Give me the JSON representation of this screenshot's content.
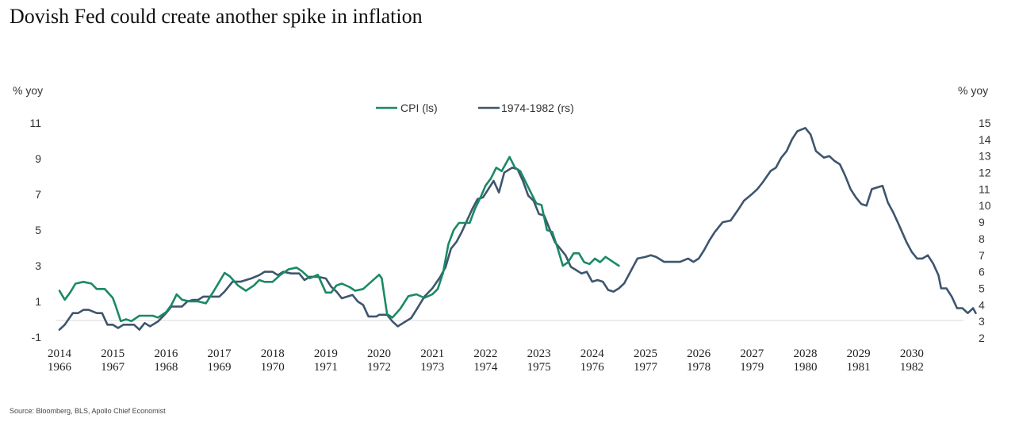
{
  "chart_data": {
    "type": "line",
    "title": "Dovish Fed could create another spike in inflation",
    "source": "Source: Bloomberg, BLS, Apollo Chief Economist",
    "left_axis": {
      "unit": "% yoy",
      "ylim": [
        -1,
        11
      ],
      "ticks": [
        "-1",
        "1",
        "3",
        "5",
        "7",
        "9",
        "11"
      ]
    },
    "right_axis": {
      "unit": "% yoy",
      "ylim": [
        2,
        15
      ],
      "ticks": [
        "2",
        "3",
        "4",
        "5",
        "6",
        "7",
        "8",
        "9",
        "10",
        "11",
        "12",
        "13",
        "14",
        "15"
      ]
    },
    "x_axis_top": {
      "labels": [
        "2014",
        "2015",
        "2016",
        "2017",
        "2018",
        "2019",
        "2020",
        "2021",
        "2022",
        "2023",
        "2024",
        "2025",
        "2026",
        "2027",
        "2028",
        "2029",
        "2030"
      ],
      "xlim": [
        2014,
        2031
      ]
    },
    "x_axis_bottom": {
      "labels": [
        "1966",
        "1967",
        "1968",
        "1969",
        "1970",
        "1971",
        "1972",
        "1973",
        "1974",
        "1975",
        "1976",
        "1977",
        "1978",
        "1979",
        "1980",
        "1981",
        "1982"
      ],
      "xlim": [
        1966,
        1983
      ]
    },
    "legend": {
      "placement": "top-center"
    },
    "grid": false,
    "series": [
      {
        "name": "CPI (ls)",
        "axis": "left",
        "color": "#1a8a64",
        "x_axis": "top",
        "points": [
          [
            2014.0,
            1.6
          ],
          [
            2014.1,
            1.1
          ],
          [
            2014.2,
            1.5
          ],
          [
            2014.3,
            2.0
          ],
          [
            2014.45,
            2.1
          ],
          [
            2014.6,
            2.0
          ],
          [
            2014.7,
            1.7
          ],
          [
            2014.85,
            1.7
          ],
          [
            2015.0,
            1.2
          ],
          [
            2015.05,
            0.8
          ],
          [
            2015.15,
            -0.1
          ],
          [
            2015.25,
            0.0
          ],
          [
            2015.35,
            -0.1
          ],
          [
            2015.5,
            0.2
          ],
          [
            2015.6,
            0.2
          ],
          [
            2015.75,
            0.2
          ],
          [
            2015.85,
            0.1
          ],
          [
            2016.0,
            0.4
          ],
          [
            2016.1,
            0.8
          ],
          [
            2016.2,
            1.4
          ],
          [
            2016.3,
            1.1
          ],
          [
            2016.45,
            1.0
          ],
          [
            2016.6,
            1.0
          ],
          [
            2016.75,
            0.9
          ],
          [
            2016.9,
            1.6
          ],
          [
            2017.0,
            2.1
          ],
          [
            2017.1,
            2.6
          ],
          [
            2017.2,
            2.4
          ],
          [
            2017.35,
            1.9
          ],
          [
            2017.5,
            1.6
          ],
          [
            2017.65,
            1.9
          ],
          [
            2017.75,
            2.2
          ],
          [
            2017.85,
            2.1
          ],
          [
            2018.0,
            2.1
          ],
          [
            2018.15,
            2.5
          ],
          [
            2018.3,
            2.8
          ],
          [
            2018.45,
            2.9
          ],
          [
            2018.55,
            2.7
          ],
          [
            2018.7,
            2.3
          ],
          [
            2018.85,
            2.5
          ],
          [
            2019.0,
            1.5
          ],
          [
            2019.1,
            1.5
          ],
          [
            2019.2,
            1.9
          ],
          [
            2019.3,
            2.0
          ],
          [
            2019.45,
            1.8
          ],
          [
            2019.55,
            1.6
          ],
          [
            2019.7,
            1.7
          ],
          [
            2019.85,
            2.1
          ],
          [
            2020.0,
            2.5
          ],
          [
            2020.05,
            2.3
          ],
          [
            2020.15,
            0.3
          ],
          [
            2020.25,
            0.1
          ],
          [
            2020.4,
            0.6
          ],
          [
            2020.55,
            1.3
          ],
          [
            2020.7,
            1.4
          ],
          [
            2020.85,
            1.2
          ],
          [
            2021.0,
            1.4
          ],
          [
            2021.1,
            1.7
          ],
          [
            2021.2,
            2.6
          ],
          [
            2021.3,
            4.2
          ],
          [
            2021.4,
            5.0
          ],
          [
            2021.5,
            5.4
          ],
          [
            2021.6,
            5.4
          ],
          [
            2021.7,
            5.4
          ],
          [
            2021.8,
            6.2
          ],
          [
            2021.9,
            6.8
          ],
          [
            2022.0,
            7.5
          ],
          [
            2022.1,
            7.9
          ],
          [
            2022.2,
            8.5
          ],
          [
            2022.3,
            8.3
          ],
          [
            2022.45,
            9.1
          ],
          [
            2022.55,
            8.5
          ],
          [
            2022.65,
            8.3
          ],
          [
            2022.75,
            7.7
          ],
          [
            2022.85,
            7.1
          ],
          [
            2022.95,
            6.5
          ],
          [
            2023.05,
            6.4
          ],
          [
            2023.15,
            5.0
          ],
          [
            2023.25,
            4.9
          ],
          [
            2023.35,
            4.0
          ],
          [
            2023.45,
            3.0
          ],
          [
            2023.55,
            3.2
          ],
          [
            2023.65,
            3.7
          ],
          [
            2023.75,
            3.7
          ],
          [
            2023.85,
            3.2
          ],
          [
            2023.95,
            3.1
          ],
          [
            2024.05,
            3.4
          ],
          [
            2024.15,
            3.2
          ],
          [
            2024.25,
            3.5
          ],
          [
            2024.35,
            3.3
          ],
          [
            2024.5,
            3.0
          ]
        ]
      },
      {
        "name": "1974-1982 (rs)",
        "axis": "right",
        "color": "#3e556e",
        "x_axis": "bottom",
        "points": [
          [
            1966.0,
            2.5
          ],
          [
            1966.1,
            2.8
          ],
          [
            1966.25,
            3.5
          ],
          [
            1966.35,
            3.5
          ],
          [
            1966.45,
            3.7
          ],
          [
            1966.55,
            3.7
          ],
          [
            1966.7,
            3.5
          ],
          [
            1966.8,
            3.5
          ],
          [
            1966.9,
            2.8
          ],
          [
            1967.0,
            2.8
          ],
          [
            1967.1,
            2.6
          ],
          [
            1967.2,
            2.8
          ],
          [
            1967.3,
            2.8
          ],
          [
            1967.4,
            2.8
          ],
          [
            1967.5,
            2.5
          ],
          [
            1967.6,
            2.9
          ],
          [
            1967.7,
            2.7
          ],
          [
            1967.85,
            3.0
          ],
          [
            1968.0,
            3.5
          ],
          [
            1968.1,
            3.9
          ],
          [
            1968.2,
            3.9
          ],
          [
            1968.3,
            3.9
          ],
          [
            1968.4,
            4.2
          ],
          [
            1968.5,
            4.3
          ],
          [
            1968.6,
            4.3
          ],
          [
            1968.7,
            4.5
          ],
          [
            1968.85,
            4.5
          ],
          [
            1969.0,
            4.5
          ],
          [
            1969.1,
            4.8
          ],
          [
            1969.25,
            5.4
          ],
          [
            1969.4,
            5.4
          ],
          [
            1969.5,
            5.5
          ],
          [
            1969.6,
            5.6
          ],
          [
            1969.75,
            5.8
          ],
          [
            1969.85,
            6.0
          ],
          [
            1970.0,
            6.0
          ],
          [
            1970.1,
            5.8
          ],
          [
            1970.2,
            6.0
          ],
          [
            1970.35,
            5.9
          ],
          [
            1970.5,
            5.9
          ],
          [
            1970.6,
            5.5
          ],
          [
            1970.7,
            5.7
          ],
          [
            1970.85,
            5.7
          ],
          [
            1971.0,
            5.6
          ],
          [
            1971.1,
            5.1
          ],
          [
            1971.2,
            4.8
          ],
          [
            1971.3,
            4.4
          ],
          [
            1971.4,
            4.5
          ],
          [
            1971.5,
            4.6
          ],
          [
            1971.6,
            4.2
          ],
          [
            1971.7,
            4.0
          ],
          [
            1971.8,
            3.3
          ],
          [
            1971.95,
            3.3
          ],
          [
            1972.0,
            3.4
          ],
          [
            1972.15,
            3.4
          ],
          [
            1972.25,
            3.0
          ],
          [
            1972.35,
            2.7
          ],
          [
            1972.45,
            2.9
          ],
          [
            1972.6,
            3.2
          ],
          [
            1972.7,
            3.7
          ],
          [
            1972.85,
            4.5
          ],
          [
            1973.0,
            5.0
          ],
          [
            1973.15,
            5.7
          ],
          [
            1973.25,
            6.3
          ],
          [
            1973.35,
            7.4
          ],
          [
            1973.45,
            7.8
          ],
          [
            1973.55,
            8.4
          ],
          [
            1973.65,
            9.1
          ],
          [
            1973.75,
            9.8
          ],
          [
            1973.85,
            10.4
          ],
          [
            1973.95,
            10.5
          ],
          [
            1974.05,
            11.0
          ],
          [
            1974.15,
            11.5
          ],
          [
            1974.25,
            10.8
          ],
          [
            1974.35,
            12.0
          ],
          [
            1974.5,
            12.3
          ],
          [
            1974.6,
            12.2
          ],
          [
            1974.7,
            11.5
          ],
          [
            1974.8,
            10.6
          ],
          [
            1974.9,
            10.3
          ],
          [
            1975.0,
            9.5
          ],
          [
            1975.1,
            9.4
          ],
          [
            1975.2,
            8.6
          ],
          [
            1975.3,
            7.8
          ],
          [
            1975.4,
            7.4
          ],
          [
            1975.5,
            7.0
          ],
          [
            1975.6,
            6.3
          ],
          [
            1975.7,
            6.1
          ],
          [
            1975.8,
            5.9
          ],
          [
            1975.9,
            6.0
          ],
          [
            1976.0,
            5.4
          ],
          [
            1976.1,
            5.5
          ],
          [
            1976.2,
            5.4
          ],
          [
            1976.3,
            4.9
          ],
          [
            1976.4,
            4.8
          ],
          [
            1976.5,
            5.0
          ],
          [
            1976.6,
            5.3
          ],
          [
            1976.7,
            5.9
          ],
          [
            1976.85,
            6.8
          ],
          [
            1977.0,
            6.9
          ],
          [
            1977.1,
            7.0
          ],
          [
            1977.2,
            6.9
          ],
          [
            1977.35,
            6.6
          ],
          [
            1977.5,
            6.6
          ],
          [
            1977.65,
            6.6
          ],
          [
            1977.8,
            6.8
          ],
          [
            1977.9,
            6.6
          ],
          [
            1978.0,
            6.8
          ],
          [
            1978.1,
            7.3
          ],
          [
            1978.2,
            7.9
          ],
          [
            1978.3,
            8.4
          ],
          [
            1978.45,
            9.0
          ],
          [
            1978.6,
            9.1
          ],
          [
            1978.75,
            9.8
          ],
          [
            1978.85,
            10.3
          ],
          [
            1979.0,
            10.7
          ],
          [
            1979.1,
            11.0
          ],
          [
            1979.2,
            11.4
          ],
          [
            1979.35,
            12.1
          ],
          [
            1979.45,
            12.3
          ],
          [
            1979.55,
            12.9
          ],
          [
            1979.65,
            13.3
          ],
          [
            1979.75,
            14.0
          ],
          [
            1979.85,
            14.5
          ],
          [
            1980.0,
            14.7
          ],
          [
            1980.1,
            14.3
          ],
          [
            1980.2,
            13.3
          ],
          [
            1980.35,
            12.9
          ],
          [
            1980.45,
            13.0
          ],
          [
            1980.55,
            12.7
          ],
          [
            1980.65,
            12.5
          ],
          [
            1980.75,
            11.8
          ],
          [
            1980.85,
            11.0
          ],
          [
            1980.95,
            10.5
          ],
          [
            1981.05,
            10.1
          ],
          [
            1981.15,
            10.0
          ],
          [
            1981.25,
            11.0
          ],
          [
            1981.35,
            11.1
          ],
          [
            1981.45,
            11.2
          ],
          [
            1981.55,
            10.2
          ],
          [
            1981.65,
            9.6
          ],
          [
            1981.75,
            8.9
          ],
          [
            1981.9,
            7.8
          ],
          [
            1982.0,
            7.2
          ],
          [
            1982.1,
            6.8
          ],
          [
            1982.2,
            6.8
          ],
          [
            1982.3,
            7.0
          ],
          [
            1982.4,
            6.5
          ],
          [
            1982.5,
            5.8
          ],
          [
            1982.55,
            5.0
          ],
          [
            1982.65,
            5.0
          ],
          [
            1982.75,
            4.5
          ],
          [
            1982.85,
            3.8
          ],
          [
            1982.95,
            3.8
          ],
          [
            1983.05,
            3.5
          ],
          [
            1983.15,
            3.8
          ],
          [
            1983.2,
            3.5
          ]
        ]
      }
    ]
  }
}
